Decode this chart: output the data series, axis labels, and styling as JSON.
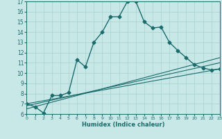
{
  "xlabel": "Humidex (Indice chaleur)",
  "xlim": [
    0,
    23
  ],
  "ylim": [
    6,
    17
  ],
  "yticks": [
    6,
    7,
    8,
    9,
    10,
    11,
    12,
    13,
    14,
    15,
    16,
    17
  ],
  "xticks": [
    0,
    1,
    2,
    3,
    4,
    5,
    6,
    7,
    8,
    9,
    10,
    11,
    12,
    13,
    14,
    15,
    16,
    17,
    18,
    19,
    20,
    21,
    22,
    23
  ],
  "bg_color": "#c8e8e8",
  "line_color": "#1a6b6b",
  "grid_color": "#a8d0d0",
  "main_series_x": [
    0,
    1,
    2,
    3,
    4,
    5,
    6,
    7,
    8,
    9,
    10,
    11,
    12,
    13,
    14,
    15,
    16,
    17,
    18,
    19,
    20,
    21,
    22,
    23
  ],
  "main_series_y": [
    7.0,
    6.7,
    6.1,
    7.8,
    7.8,
    8.1,
    11.3,
    10.6,
    13.0,
    14.0,
    15.5,
    15.5,
    17.0,
    17.0,
    15.0,
    14.4,
    14.5,
    13.0,
    12.2,
    11.5,
    10.8,
    10.5,
    10.3,
    10.4
  ],
  "ref_lines": [
    {
      "x": [
        0,
        23
      ],
      "y": [
        7.0,
        10.4
      ]
    },
    {
      "x": [
        0,
        23
      ],
      "y": [
        6.8,
        11.0
      ]
    },
    {
      "x": [
        0,
        23
      ],
      "y": [
        6.5,
        11.5
      ]
    }
  ]
}
